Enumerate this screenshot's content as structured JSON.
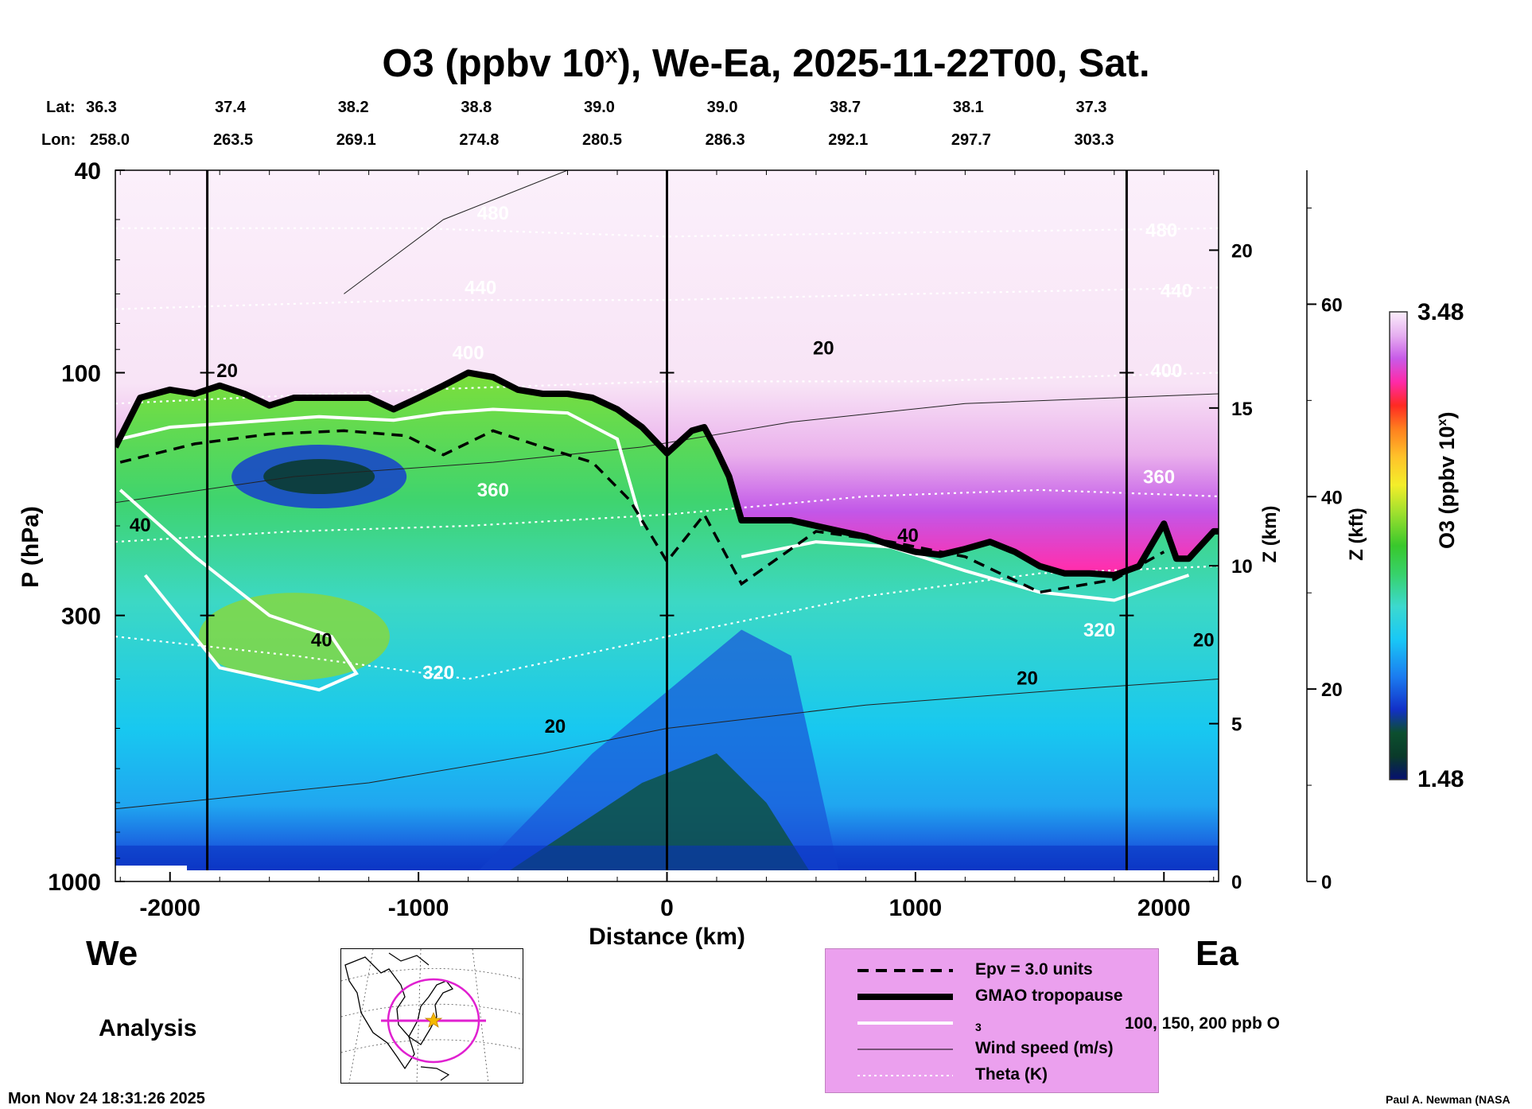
{
  "title": {
    "main": "O3 (ppbv 10",
    "sup": "x",
    "rest": "), We-Ea, 2025-11-22T00, Sat."
  },
  "coords": {
    "lat_label": "Lat:",
    "lon_label": "Lon:",
    "lat": [
      "36.3",
      "37.4",
      "38.2",
      "38.8",
      "39.0",
      "39.0",
      "38.7",
      "38.1",
      "37.3"
    ],
    "lon": [
      "258.0",
      "263.5",
      "269.1",
      "274.8",
      "280.5",
      "286.3",
      "292.1",
      "297.7",
      "303.3"
    ]
  },
  "labels": {
    "west": "We",
    "east": "Ea",
    "analysis": "Analysis",
    "timestamp": "Mon Nov 24 18:31:26 2025",
    "credit": "Paul A. Newman (NASA"
  },
  "colorbar": {
    "max": "3.48",
    "min": "1.48",
    "label": "O3 (ppbv 10",
    "label_sup": "x",
    "label_end": ")"
  },
  "legend": [
    {
      "key": "epv",
      "label": "Epv = 3.0 units"
    },
    {
      "key": "trop",
      "label": "GMAO tropopause"
    },
    {
      "key": "o3c",
      "label": "100, 150, 200 ppb O",
      "sub": "3"
    },
    {
      "key": "wind",
      "label": "Wind speed (m/s)"
    },
    {
      "key": "theta",
      "label": "Theta (K)"
    }
  ],
  "chart_data": {
    "type": "heatmap",
    "title": "O3 (ppbv 10^x), We-Ea, 2025-11-22T00, Sat.",
    "xlabel": "Distance (km)",
    "ylabel": "P (hPa)",
    "y2label": "Z (km)",
    "y3label": "Z (kft)",
    "xlim": [
      -2220,
      2220
    ],
    "ylim": [
      1000,
      40
    ],
    "x_ticks": [
      -2000,
      -1000,
      0,
      1000,
      2000
    ],
    "x_tick_labels": [
      "-2000",
      "-1000",
      "0",
      "1000",
      "2000"
    ],
    "p_ticks": [
      40,
      100,
      300,
      1000
    ],
    "p_tick_labels": [
      "40",
      "100",
      "300",
      "1000"
    ],
    "z_km_ticks": [
      0,
      5,
      10,
      15,
      20
    ],
    "z_km_tick_labels": [
      "0",
      "5",
      "10",
      "15",
      "20"
    ],
    "z_kft_ticks": [
      0,
      20,
      40,
      60
    ],
    "z_kft_tick_labels": [
      "0",
      "20",
      "40",
      "60"
    ],
    "colorbar_range": [
      1.48,
      3.48
    ],
    "section_markers_km": [
      -1850,
      0,
      1850
    ],
    "tropopause": {
      "x": [
        -2220,
        -2120,
        -2000,
        -1900,
        -1800,
        -1700,
        -1600,
        -1500,
        -1400,
        -1300,
        -1200,
        -1100,
        -1000,
        -900,
        -800,
        -700,
        -600,
        -500,
        -400,
        -300,
        -200,
        -100,
        0,
        100,
        150,
        200,
        250,
        300,
        400,
        500,
        600,
        700,
        800,
        900,
        1000,
        1100,
        1200,
        1300,
        1400,
        1500,
        1600,
        1700,
        1800,
        1900,
        2000,
        2050,
        2100,
        2200,
        2220
      ],
      "p": [
        140,
        112,
        108,
        110,
        106,
        110,
        116,
        112,
        112,
        112,
        112,
        118,
        112,
        106,
        100,
        102,
        108,
        110,
        110,
        112,
        118,
        128,
        144,
        130,
        128,
        142,
        160,
        195,
        195,
        195,
        200,
        205,
        210,
        218,
        225,
        228,
        222,
        215,
        225,
        240,
        248,
        248,
        250,
        240,
        198,
        232,
        232,
        205,
        205
      ]
    },
    "theta_contours": [
      {
        "label": "320",
        "x": [
          -2220,
          -1500,
          -800,
          0,
          800,
          1500,
          2220
        ],
        "p": [
          330,
          360,
          400,
          330,
          275,
          248,
          240
        ]
      },
      {
        "label": "360",
        "x": [
          -2220,
          -1500,
          -800,
          0,
          800,
          1500,
          2220
        ],
        "p": [
          215,
          205,
          200,
          190,
          175,
          170,
          175
        ]
      },
      {
        "label": "400",
        "x": [
          -2220,
          -1000,
          0,
          1000,
          2220
        ],
        "p": [
          115,
          108,
          104,
          104,
          100
        ]
      },
      {
        "label": "440",
        "x": [
          -2220,
          -1000,
          0,
          1000,
          2220
        ],
        "p": [
          75,
          72,
          72,
          70,
          68
        ]
      },
      {
        "label": "480",
        "x": [
          -2220,
          -1000,
          0,
          1000,
          2220
        ],
        "p": [
          52,
          52,
          54,
          53,
          52
        ]
      }
    ],
    "contour_labels": [
      {
        "text": "480",
        "x": -700,
        "p": 50
      },
      {
        "text": "480",
        "x": 1990,
        "p": 54
      },
      {
        "text": "440",
        "x": -750,
        "p": 70
      },
      {
        "text": "440",
        "x": 2050,
        "p": 71
      },
      {
        "text": "400",
        "x": -800,
        "p": 94
      },
      {
        "text": "400",
        "x": 2010,
        "p": 102
      },
      {
        "text": "360",
        "x": -700,
        "p": 175
      },
      {
        "text": "360",
        "x": 1980,
        "p": 165
      },
      {
        "text": "320",
        "x": -920,
        "p": 400
      },
      {
        "text": "320",
        "x": 1740,
        "p": 330
      },
      {
        "text": "20",
        "x": -1770,
        "p": 102
      },
      {
        "text": "20",
        "x": 630,
        "p": 92
      },
      {
        "text": "20",
        "x": -450,
        "p": 510
      },
      {
        "text": "20",
        "x": 1450,
        "p": 410
      },
      {
        "text": "20",
        "x": 2160,
        "p": 345
      },
      {
        "text": "40",
        "x": -2120,
        "p": 205
      },
      {
        "text": "40",
        "x": -1390,
        "p": 345
      },
      {
        "text": "40",
        "x": 970,
        "p": 215
      }
    ]
  }
}
